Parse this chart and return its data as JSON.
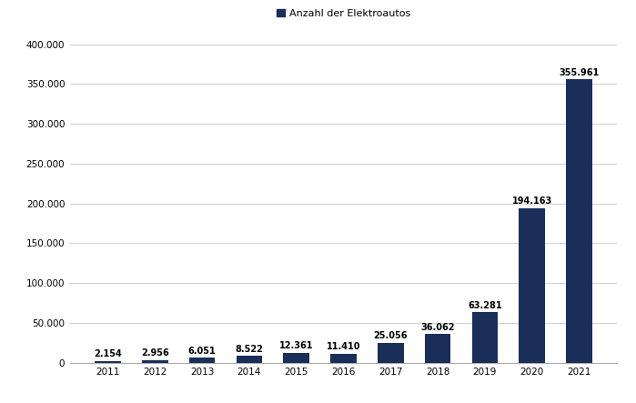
{
  "years": [
    "2011",
    "2012",
    "2013",
    "2014",
    "2015",
    "2016",
    "2017",
    "2018",
    "2019",
    "2020",
    "2021"
  ],
  "values": [
    2154,
    2956,
    6051,
    8522,
    12361,
    11410,
    25056,
    36062,
    63281,
    194163,
    355961
  ],
  "labels": [
    "2.154",
    "2.956",
    "6.051",
    "8.522",
    "12.361",
    "11.410",
    "25.056",
    "36.062",
    "63.281",
    "194.163",
    "355.961"
  ],
  "bar_color": "#1a2e5a",
  "legend_label": "Anzahl der Elektroautos",
  "ylim": [
    0,
    410000
  ],
  "yticks": [
    0,
    50000,
    100000,
    150000,
    200000,
    250000,
    300000,
    350000,
    400000
  ],
  "ytick_labels": [
    "0",
    "50.000",
    "100.000",
    "150.000",
    "200.000",
    "250.000",
    "300.000",
    "350.000",
    "400.000"
  ],
  "background_color": "#ffffff",
  "grid_color": "#d0d0d0",
  "label_fontsize": 7,
  "tick_fontsize": 7.5,
  "legend_fontsize": 8,
  "bar_width": 0.55
}
